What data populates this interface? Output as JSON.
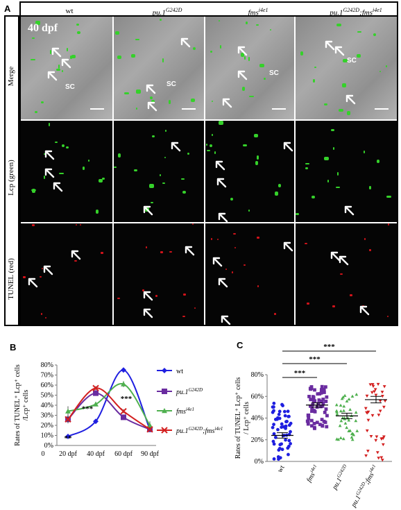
{
  "panels": {
    "a": {
      "letter": "A"
    },
    "b": {
      "letter": "B"
    },
    "c": {
      "letter": "C"
    }
  },
  "panelA": {
    "columns": [
      "wt",
      "pu.1",
      "fms",
      "pu.1",
      "fms"
    ],
    "col_wt": "wt",
    "col_pu1_base": "pu.1",
    "col_pu1_sup": "G242D",
    "col_fms_base": "fms",
    "col_fms_sup": "i4e1",
    "col_double_base": "pu.1",
    "col_double_sup": "G242D",
    "col_double_sep": ";",
    "col_double_fms": "fms",
    "col_double_fms_sup": "i4e1",
    "rows": {
      "merge": "Merge",
      "lcp": "Lcp (green)",
      "tunel": "TUNEL (red)"
    },
    "stage": "40 dpf",
    "sc_label": "SC"
  },
  "chart_data": [
    {
      "type": "line",
      "panel": "B",
      "ylabel_line1": "Rates of TUNEL⁺ Lcp⁺ cells",
      "ylabel_line2": "/Lcp⁺ cells",
      "categories": [
        "20 dpf",
        "40 dpf",
        "60 dpf",
        "90 dpf"
      ],
      "x_extra_tick": "0",
      "yticks": [
        "0%",
        "10%",
        "20%",
        "30%",
        "40%",
        "50%",
        "60%",
        "70%",
        "80%"
      ],
      "ylim": [
        0,
        80
      ],
      "series": [
        {
          "name": "wt",
          "color": "#1f1fe0",
          "marker": "diamond",
          "values": [
            9,
            24,
            75,
            16
          ],
          "err": [
            1,
            1.5,
            1,
            2
          ]
        },
        {
          "name": "pu.1",
          "sup": "G242D",
          "color": "#6a2ca0",
          "marker": "square",
          "values": [
            26,
            52,
            28,
            16
          ],
          "err": [
            4,
            2,
            1,
            2
          ]
        },
        {
          "name": "fms",
          "sup": "i4e1",
          "color": "#4fb04f",
          "marker": "triangle",
          "values": [
            34,
            41,
            61,
            20
          ],
          "err": [
            5,
            2,
            3,
            4
          ]
        },
        {
          "name": "pu.1",
          "sup": "G242D",
          "sep": ";",
          "name2": "fms",
          "sup2": "i4e1",
          "color": "#d32020",
          "marker": "x",
          "values": [
            26,
            57,
            34,
            16
          ],
          "err": [
            3,
            2,
            2,
            2
          ]
        }
      ],
      "annotations": [
        "**",
        "***",
        "***"
      ]
    },
    {
      "type": "scatter",
      "panel": "C",
      "ylabel_line1": "Rates of TUNEL⁺ Lcp⁺ cells",
      "ylabel_line2": "/ Lcp⁺ cells",
      "categories": [
        "wt",
        "fms",
        "pu.1",
        "pu.1"
      ],
      "cat_sups": [
        "",
        "i4e1",
        "G242D",
        "G242D;fms i4e1"
      ],
      "yticks": [
        "0%",
        "20%",
        "40%",
        "60%",
        "80%"
      ],
      "ylim": [
        0,
        80
      ],
      "series": [
        {
          "name": "wt",
          "color": "#1f1fe0",
          "marker": "circle",
          "mean": 24,
          "sem": 2.5
        },
        {
          "name": "fms i4e1",
          "color": "#6a2ca0",
          "marker": "square",
          "mean": 52,
          "sem": 2
        },
        {
          "name": "pu.1 G242D",
          "color": "#4fb04f",
          "marker": "triangle",
          "mean": 42,
          "sem": 2.5
        },
        {
          "name": "pu.1 G242D;fms i4e1",
          "color": "#d32020",
          "marker": "triangle-down",
          "mean": 57,
          "sem": 3
        }
      ],
      "significance": [
        "***",
        "***",
        "***"
      ]
    }
  ]
}
